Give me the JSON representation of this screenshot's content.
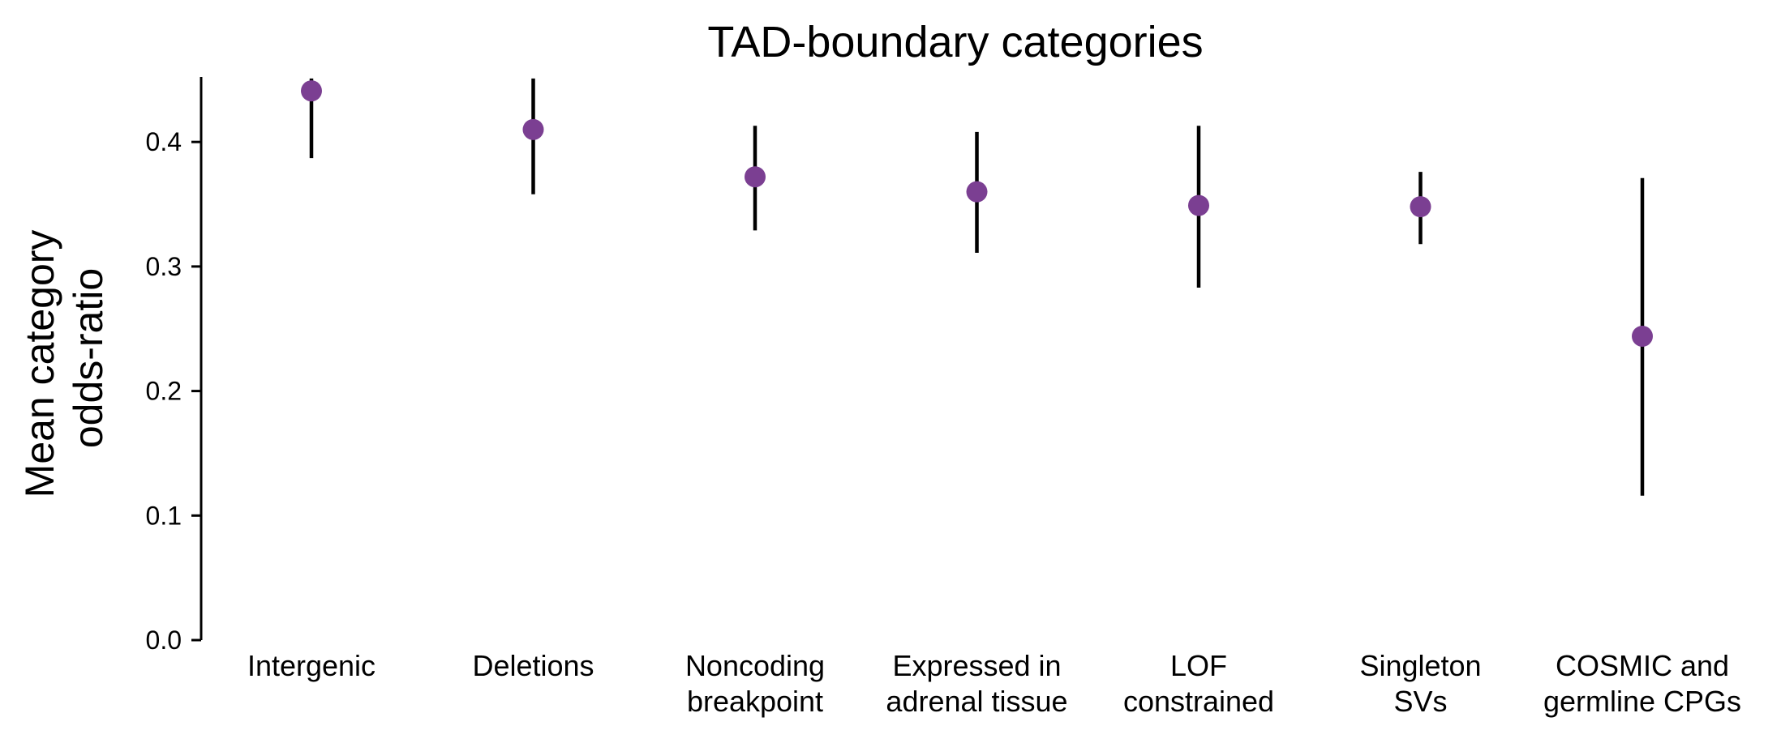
{
  "chart_data": {
    "type": "scatter",
    "title": "TAD-boundary categories",
    "ylabel_lines": [
      "Mean category",
      "odds-ratio"
    ],
    "xlabel": "",
    "ylim": [
      0,
      0.45
    ],
    "yticks": [
      0.0,
      0.1,
      0.2,
      0.3,
      0.4
    ],
    "ytick_labels": [
      "0.0",
      "0.1",
      "0.2",
      "0.3",
      "0.4"
    ],
    "grid": false,
    "legend": null,
    "point_color": "#7B3F92",
    "errorbar_color": "#000000",
    "categories": [
      [
        "Intergenic"
      ],
      [
        "Deletions"
      ],
      [
        "Noncoding",
        "breakpoint"
      ],
      [
        "Expressed in",
        "adrenal tissue"
      ],
      [
        "LOF",
        "constrained"
      ],
      [
        "Singleton",
        "SVs"
      ],
      [
        "COSMIC and",
        "germline CPGs"
      ]
    ],
    "values": [
      0.441,
      0.41,
      0.372,
      0.36,
      0.349,
      0.348,
      0.244
    ],
    "lower": [
      0.387,
      0.358,
      0.329,
      0.311,
      0.283,
      0.318,
      0.116
    ],
    "upper": [
      0.451,
      0.451,
      0.413,
      0.408,
      0.413,
      0.376,
      0.371
    ]
  }
}
